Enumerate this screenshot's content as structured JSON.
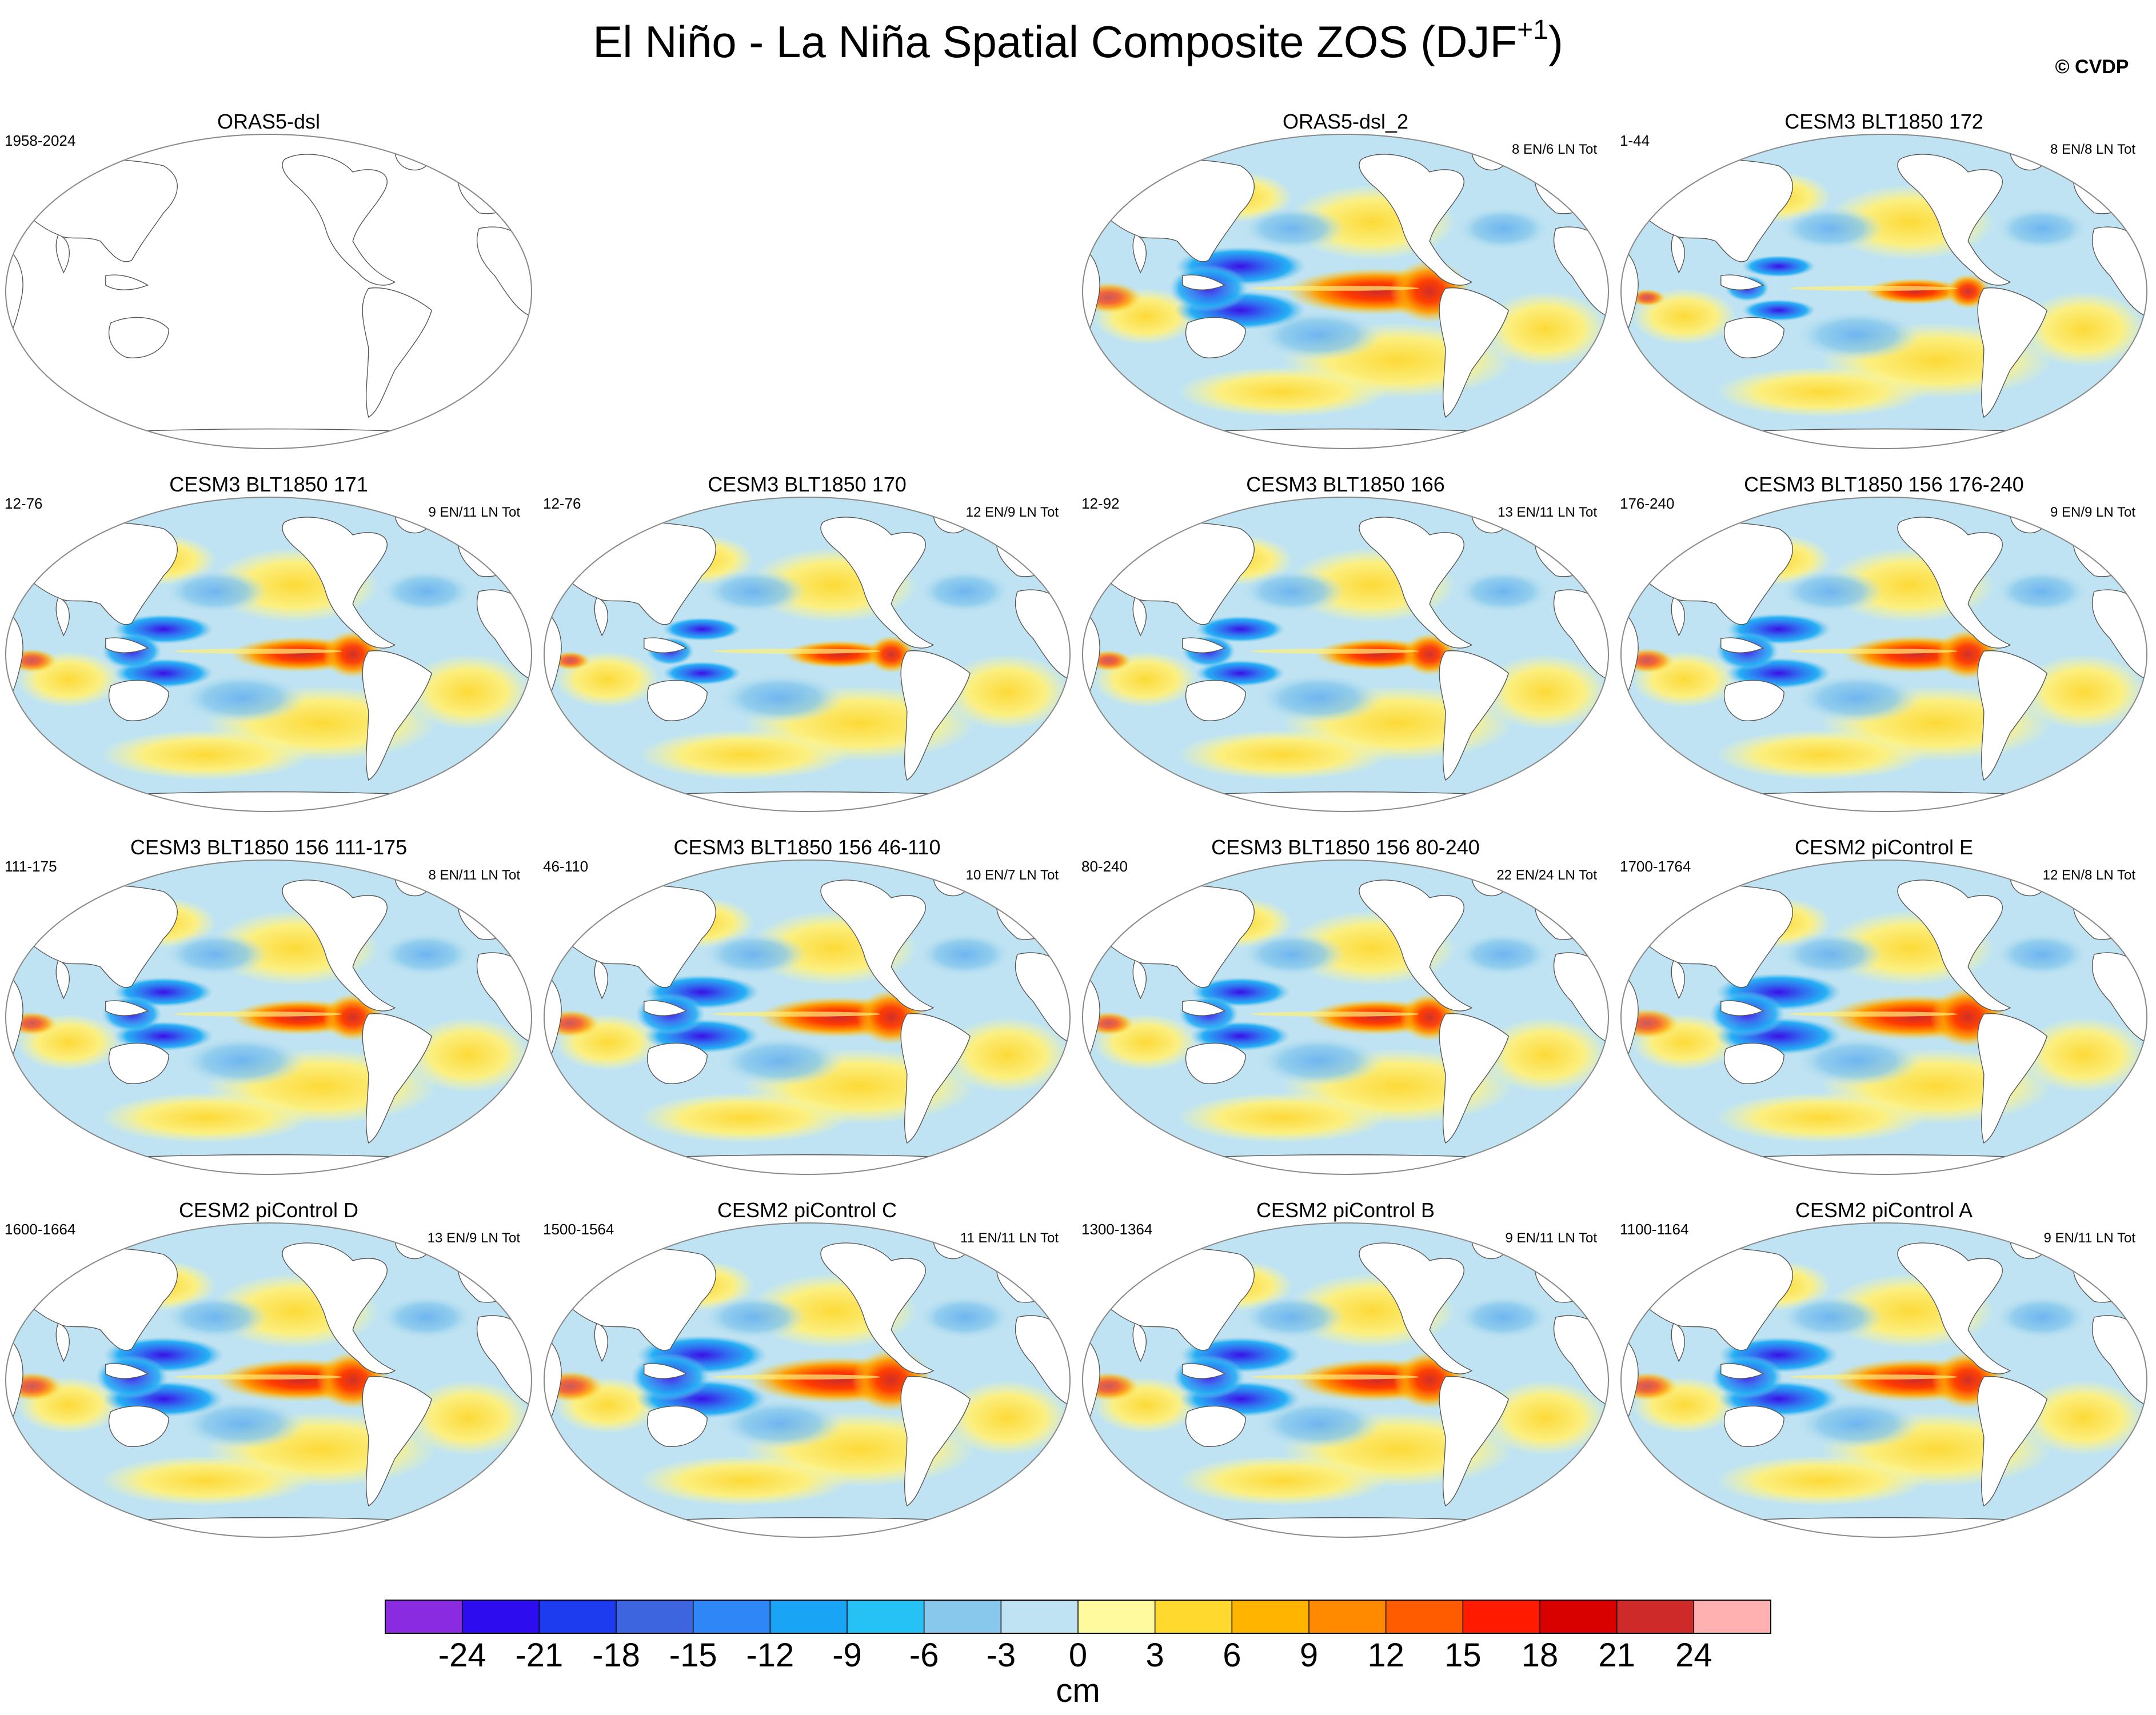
{
  "figure": {
    "title": "El Niño - La Niña Spatial Composite ZOS (DJF",
    "title_sup": "+1",
    "title_close": ")",
    "watermark": "© CVDP"
  },
  "panels": [
    {
      "title": "ORAS5-dsl",
      "period": "1958-2024",
      "events": "",
      "empty": true,
      "intensity": 0
    },
    null,
    {
      "title": "ORAS5-dsl_2",
      "period": "",
      "events": "8 EN/6 LN Tot",
      "empty": false,
      "intensity": 1.25
    },
    {
      "title": "CESM3 BLT1850 172",
      "period": "1-44",
      "events": "8 EN/8 LN Tot",
      "empty": false,
      "intensity": 0.7
    },
    {
      "title": "CESM3 BLT1850 171",
      "period": "12-76",
      "events": "9 EN/11 LN Tot",
      "empty": false,
      "intensity": 0.95
    },
    {
      "title": "CESM3 BLT1850 170",
      "period": "12-76",
      "events": "12 EN/9 LN Tot",
      "empty": false,
      "intensity": 0.75
    },
    {
      "title": "CESM3 BLT1850 166",
      "period": "12-92",
      "events": "13 EN/11 LN Tot",
      "empty": false,
      "intensity": 0.85
    },
    {
      "title": "CESM3 BLT1850 156 176-240",
      "period": "176-240",
      "events": "9 EN/9 LN Tot",
      "empty": false,
      "intensity": 1.0
    },
    {
      "title": "CESM3 BLT1850 156 111-175",
      "period": "111-175",
      "events": "8 EN/11 LN Tot",
      "empty": false,
      "intensity": 0.95
    },
    {
      "title": "CESM3 BLT1850 156 46-110",
      "period": "46-110",
      "events": "10 EN/7 LN Tot",
      "empty": false,
      "intensity": 1.1
    },
    {
      "title": "CESM3 BLT1850 156 80-240",
      "period": "80-240",
      "events": "22 EN/24 LN Tot",
      "empty": false,
      "intensity": 0.95
    },
    {
      "title": "CESM2 piControl E",
      "period": "1700-1764",
      "events": "12 EN/8 LN Tot",
      "empty": false,
      "intensity": 1.2
    },
    {
      "title": "CESM2 piControl D",
      "period": "1600-1664",
      "events": "13 EN/9 LN Tot",
      "empty": false,
      "intensity": 1.15
    },
    {
      "title": "CESM2 piControl C",
      "period": "1500-1564",
      "events": "11 EN/11 LN Tot",
      "empty": false,
      "intensity": 1.25
    },
    {
      "title": "CESM2 piControl B",
      "period": "1300-1364",
      "events": "9 EN/11 LN Tot",
      "empty": false,
      "intensity": 1.15
    },
    {
      "title": "CESM2 piControl A",
      "period": "1100-1164",
      "events": "9 EN/11 LN Tot",
      "empty": false,
      "intensity": 1.15
    }
  ],
  "colorbar": {
    "label": "cm",
    "tick_labels": [
      "-24",
      "-21",
      "-18",
      "-15",
      "-12",
      "-9",
      "-6",
      "-3",
      "0",
      "3",
      "6",
      "9",
      "12",
      "15",
      "18",
      "21",
      "24"
    ],
    "colors": [
      "#8a2be2",
      "#2e0cf0",
      "#1d3cf0",
      "#3e65e0",
      "#2f87f7",
      "#1aa4f5",
      "#26c2f5",
      "#87c8ec",
      "#bfe3f2",
      "#fffa9e",
      "#ffd92e",
      "#ffb400",
      "#ff8a00",
      "#ff5c00",
      "#ff1a00",
      "#d90000",
      "#cf2a2a",
      "#ffb0b0"
    ]
  }
}
